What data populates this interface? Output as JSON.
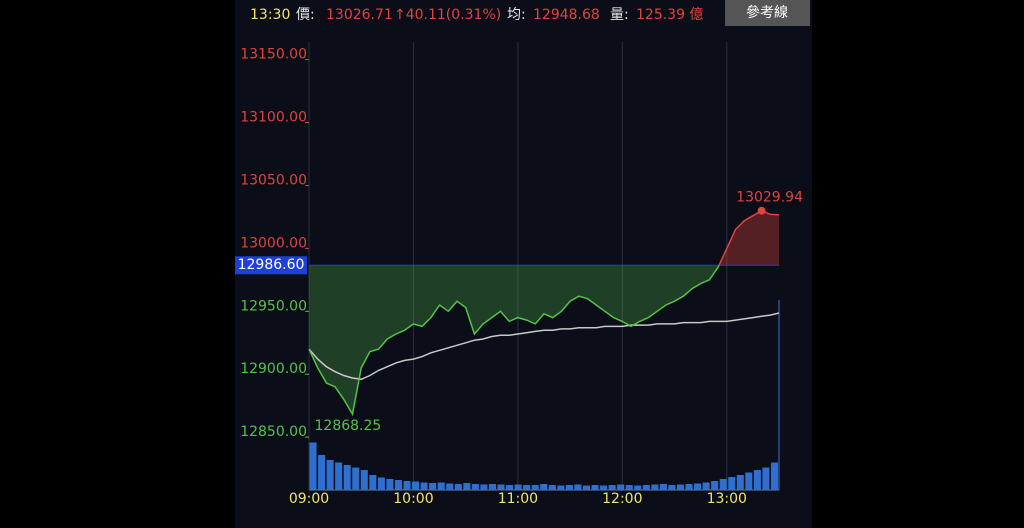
{
  "header": {
    "time": "13:30",
    "price_label": "價:",
    "price": "13026.71",
    "change": "↑40.11(0.31%)",
    "avg_label": "均:",
    "avg": "12948.68",
    "volume_label": "量:",
    "volume": "125.39 億",
    "button": "參考線"
  },
  "chart_data": {
    "type": "line",
    "x": [
      0,
      5,
      10,
      15,
      20,
      25,
      30,
      35,
      40,
      45,
      50,
      55,
      60,
      65,
      70,
      75,
      80,
      85,
      90,
      95,
      100,
      105,
      110,
      115,
      120,
      125,
      130,
      135,
      140,
      145,
      150,
      155,
      160,
      165,
      170,
      175,
      180,
      185,
      190,
      195,
      200,
      205,
      210,
      215,
      220,
      225,
      230,
      235,
      240,
      245,
      250,
      255,
      260,
      265,
      270
    ],
    "xlim": [
      0,
      270
    ],
    "xticks": [
      {
        "value": 0,
        "label": "09:00"
      },
      {
        "value": 60,
        "label": "10:00"
      },
      {
        "value": 120,
        "label": "11:00"
      },
      {
        "value": 180,
        "label": "12:00"
      },
      {
        "value": 240,
        "label": "13:00"
      }
    ],
    "ylim": [
      12808,
      13164
    ],
    "yticks": [
      {
        "value": 12850,
        "label": "12850.00"
      },
      {
        "value": 12900,
        "label": "12900.00"
      },
      {
        "value": 12950,
        "label": "12950.00"
      },
      {
        "value": 13000,
        "label": "13000.00"
      },
      {
        "value": 13050,
        "label": "13050.00"
      },
      {
        "value": 13100,
        "label": "13100.00"
      },
      {
        "value": 13150,
        "label": "13150.00"
      }
    ],
    "reference": {
      "value": 12986.6,
      "label": "12986.60",
      "color": "#1f3fd6"
    },
    "up_color": "#e0443a",
    "down_color": "#55c34a",
    "series": [
      {
        "name": "price",
        "values": [
          12920,
          12905,
          12893,
          12890,
          12880,
          12868.25,
          12905,
          12918,
          12920,
          12928,
          12932,
          12935,
          12940,
          12938,
          12945,
          12955,
          12950,
          12958,
          12953,
          12932,
          12940,
          12945,
          12950,
          12942,
          12945,
          12943,
          12940,
          12948,
          12945,
          12950,
          12958,
          12962,
          12960,
          12955,
          12950,
          12945,
          12942,
          12938,
          12942,
          12945,
          12950,
          12955,
          12958,
          12962,
          12968,
          12972,
          12975,
          12985,
          13000,
          13015,
          13022,
          13026,
          13029.94,
          13027,
          13026.71
        ]
      },
      {
        "name": "average",
        "color": "#c8c8c8",
        "values": [
          12920,
          12912,
          12906,
          12902,
          12899,
          12897,
          12896,
          12899,
          12903,
          12906,
          12909,
          12911,
          12912,
          12914,
          12917,
          12919,
          12921,
          12923,
          12925,
          12927,
          12928,
          12930,
          12931,
          12931,
          12932,
          12933,
          12934,
          12935,
          12935,
          12936,
          12936,
          12937,
          12937,
          12937,
          12938,
          12938,
          12938,
          12939,
          12939,
          12939,
          12940,
          12940,
          12940,
          12941,
          12941,
          12941,
          12942,
          12942,
          12942,
          12943,
          12944,
          12945,
          12946,
          12947,
          12948.68
        ]
      }
    ],
    "volume": {
      "color": "#2f6fd0",
      "vlim": [
        0,
        100
      ],
      "values": [
        95,
        70,
        60,
        55,
        50,
        45,
        40,
        30,
        25,
        22,
        20,
        18,
        17,
        15,
        14,
        15,
        13,
        12,
        14,
        12,
        11,
        12,
        11,
        10,
        11,
        10,
        10,
        12,
        10,
        9,
        10,
        11,
        9,
        10,
        9,
        10,
        11,
        10,
        9,
        10,
        11,
        12,
        10,
        11,
        12,
        13,
        15,
        18,
        22,
        26,
        30,
        35,
        40,
        45,
        55
      ]
    },
    "annotations": [
      {
        "text": "12868.25",
        "x": 25,
        "y": 12868.25
      },
      {
        "text": "13029.94",
        "x": 260,
        "y": 13029.94
      }
    ]
  }
}
